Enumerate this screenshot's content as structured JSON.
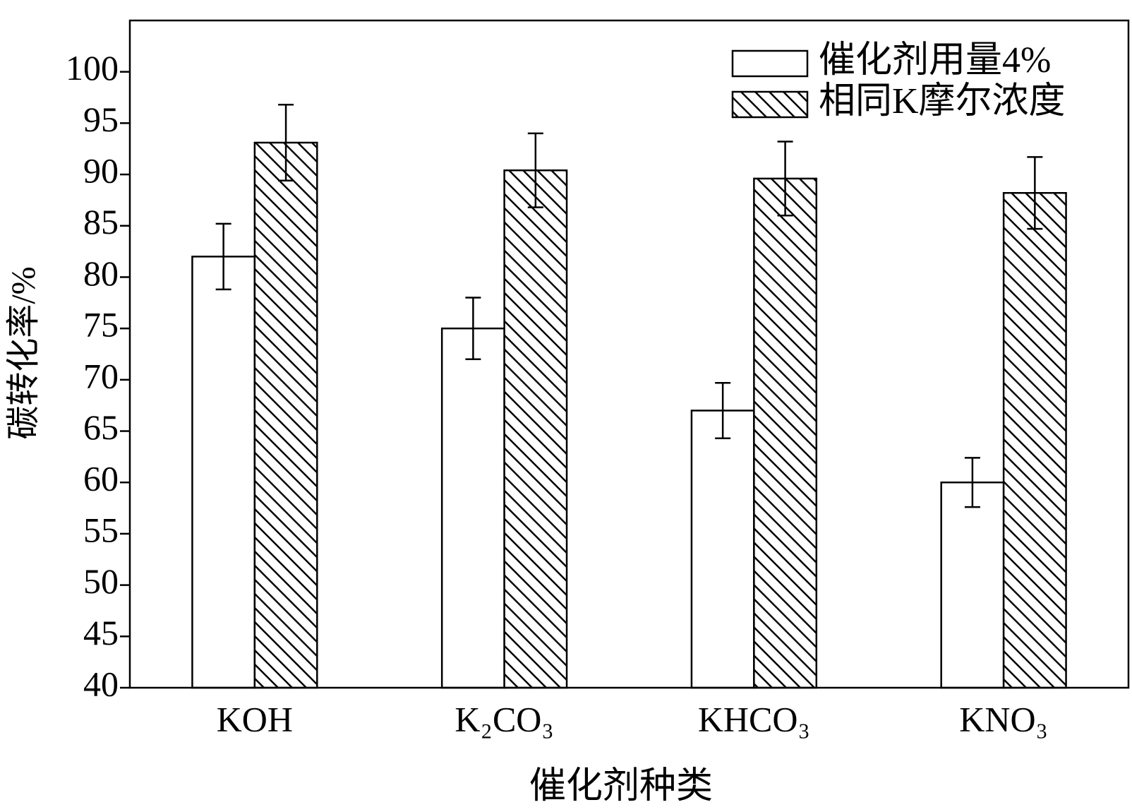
{
  "chart_data": {
    "type": "bar",
    "xlabel": "催化剂种类",
    "ylabel": "碳转化率/%",
    "categories": [
      "KOH",
      "K₂CO₃",
      "KHCO₃",
      "KNO₃"
    ],
    "series": [
      {
        "name": "催化剂用量4%",
        "color": "#ffffff",
        "values": [
          82,
          75,
          67,
          60
        ],
        "errors": [
          3.2,
          3,
          2.7,
          2.4
        ]
      },
      {
        "name": "相同K摩尔浓度",
        "color": "#ffffff",
        "pattern": "hatch",
        "values": [
          93.1,
          90.4,
          89.6,
          88.2
        ],
        "errors": [
          3.7,
          3.6,
          3.6,
          3.5
        ]
      }
    ],
    "ylim": [
      40,
      105
    ],
    "yticks": [
      40,
      45,
      50,
      55,
      60,
      65,
      70,
      75,
      80,
      85,
      90,
      95,
      100
    ],
    "grid": false,
    "legend": "upper right"
  }
}
